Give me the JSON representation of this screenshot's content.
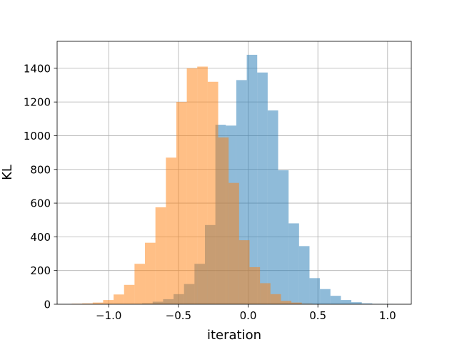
{
  "chart_data": {
    "type": "histogram",
    "xlabel": "iteration",
    "ylabel": "KL",
    "xlim": [
      -1.37,
      1.17
    ],
    "ylim": [
      0,
      1560
    ],
    "grid": true,
    "x_ticks": [
      -1.0,
      -0.5,
      0.0,
      0.5,
      1.0
    ],
    "x_tick_labels": [
      "−1.0",
      "−0.5",
      "0.0",
      "0.5",
      "1.0"
    ],
    "y_ticks": [
      0,
      200,
      400,
      600,
      800,
      1000,
      1200,
      1400
    ],
    "y_tick_labels": [
      "0",
      "200",
      "400",
      "600",
      "800",
      "1000",
      "1200",
      "1400"
    ],
    "series": [
      {
        "color": "#1f77b4",
        "alpha": 0.5,
        "bins": [
          [
            -0.835,
            -0.76,
            2
          ],
          [
            -0.76,
            -0.685,
            5
          ],
          [
            -0.685,
            -0.61,
            15
          ],
          [
            -0.61,
            -0.535,
            30
          ],
          [
            -0.535,
            -0.46,
            60
          ],
          [
            -0.46,
            -0.385,
            120
          ],
          [
            -0.385,
            -0.31,
            240
          ],
          [
            -0.31,
            -0.235,
            470
          ],
          [
            -0.235,
            -0.16,
            1065
          ],
          [
            -0.16,
            -0.085,
            1060
          ],
          [
            -0.085,
            -0.01,
            1330
          ],
          [
            -0.01,
            0.065,
            1480
          ],
          [
            0.065,
            0.14,
            1375
          ],
          [
            0.14,
            0.215,
            1150
          ],
          [
            0.215,
            0.29,
            795
          ],
          [
            0.29,
            0.365,
            480
          ],
          [
            0.365,
            0.44,
            345
          ],
          [
            0.44,
            0.515,
            155
          ],
          [
            0.515,
            0.59,
            90
          ],
          [
            0.59,
            0.665,
            50
          ],
          [
            0.665,
            0.74,
            25
          ],
          [
            0.74,
            0.815,
            12
          ],
          [
            0.815,
            0.89,
            5
          ],
          [
            0.89,
            0.965,
            2
          ],
          [
            0.965,
            1.04,
            1
          ]
        ]
      },
      {
        "color": "#ff7f0e",
        "alpha": 0.5,
        "bins": [
          [
            -1.265,
            -1.19,
            3
          ],
          [
            -1.19,
            -1.115,
            5
          ],
          [
            -1.115,
            -1.04,
            10
          ],
          [
            -1.04,
            -0.965,
            25
          ],
          [
            -0.965,
            -0.89,
            58
          ],
          [
            -0.89,
            -0.815,
            115
          ],
          [
            -0.815,
            -0.74,
            240
          ],
          [
            -0.74,
            -0.665,
            365
          ],
          [
            -0.665,
            -0.59,
            575
          ],
          [
            -0.59,
            -0.515,
            870
          ],
          [
            -0.515,
            -0.44,
            1200
          ],
          [
            -0.44,
            -0.365,
            1400
          ],
          [
            -0.365,
            -0.29,
            1410
          ],
          [
            -0.29,
            -0.215,
            1320
          ],
          [
            -0.215,
            -0.14,
            990
          ],
          [
            -0.14,
            -0.065,
            720
          ],
          [
            -0.065,
            0.01,
            380
          ],
          [
            0.01,
            0.085,
            220
          ],
          [
            0.085,
            0.16,
            125
          ],
          [
            0.16,
            0.235,
            60
          ],
          [
            0.235,
            0.31,
            20
          ],
          [
            0.31,
            0.385,
            10
          ],
          [
            0.385,
            0.46,
            3
          ]
        ]
      }
    ]
  }
}
